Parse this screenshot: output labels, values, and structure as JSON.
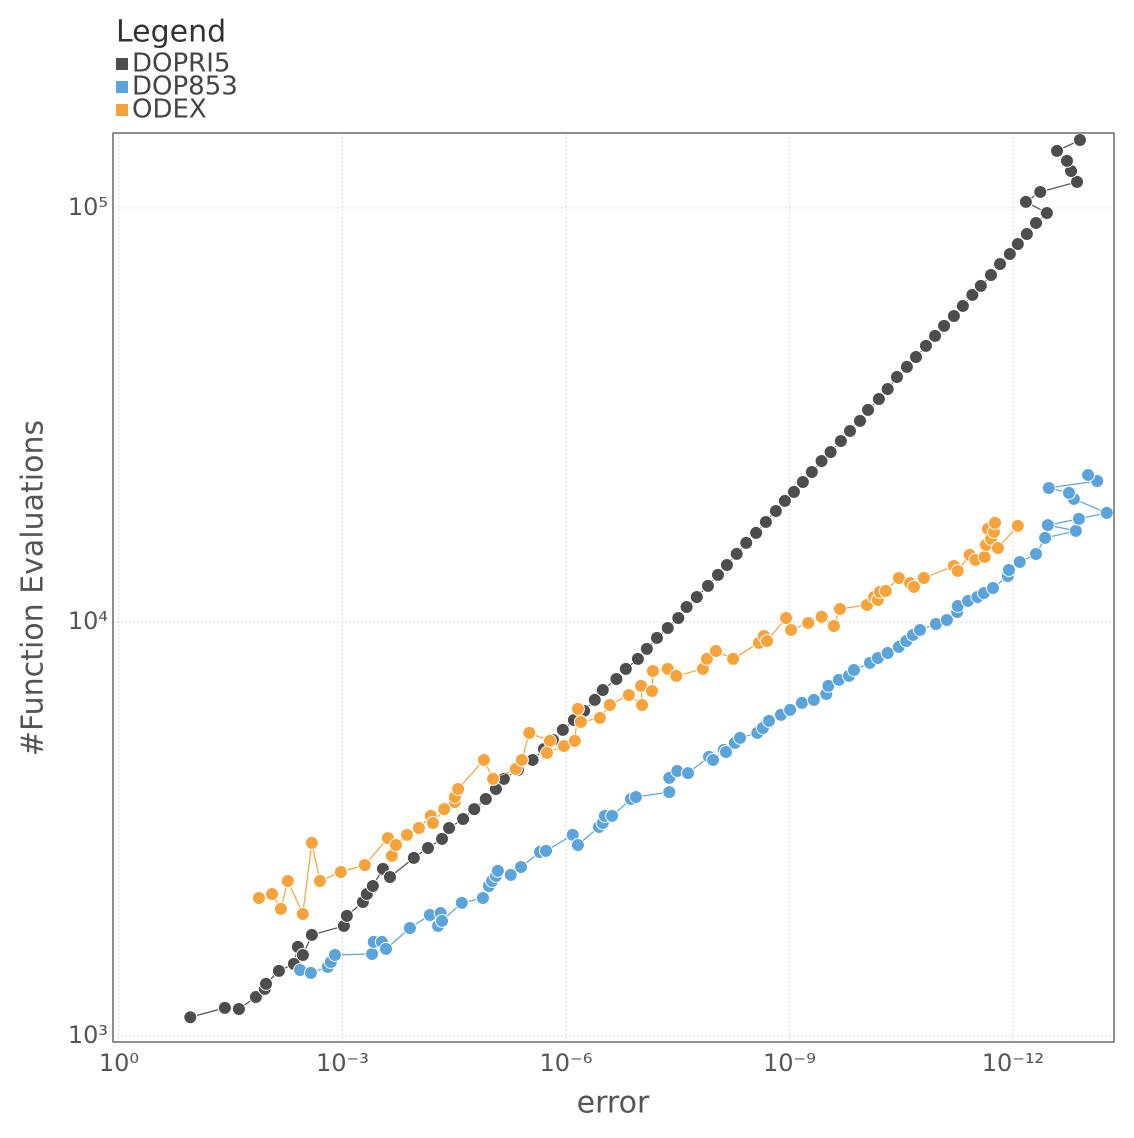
{
  "chart_data": {
    "type": "line",
    "x_label": "error",
    "y_label": "#Function Evaluations",
    "legend_title": "Legend",
    "legend": "top-left",
    "x_scale": "log",
    "y_scale": "log",
    "grid": true,
    "xlim": [
      1.2,
      4.4e-14
    ],
    "ylim": [
      967,
      151700
    ],
    "xticks": [
      {
        "value": 1,
        "label": "10⁰"
      },
      {
        "value": 0.001,
        "label": "10⁻³"
      },
      {
        "value": 1e-06,
        "label": "10⁻⁶"
      },
      {
        "value": 1e-09,
        "label": "10⁻⁹"
      },
      {
        "value": 1e-12,
        "label": "10⁻¹²"
      }
    ],
    "yticks": [
      {
        "value": 1000,
        "label": "10³"
      },
      {
        "value": 10000,
        "label": "10⁴"
      },
      {
        "value": 100000,
        "label": "10⁵"
      }
    ],
    "series": [
      {
        "name": "DOPRI5",
        "color": "#4d4d4d",
        "x": [
          0.11,
          0.0378,
          0.0245,
          0.0145,
          0.011,
          0.0106,
          0.00711,
          0.00448,
          0.00396,
          0.00339,
          0.00257,
          0.000955,
          0.000871,
          0.000531,
          0.000469,
          0.00039,
          0.000286,
          0.00023,
          0.00011,
          7.1e-05,
          4.6e-05,
          3.7e-05,
          2.4e-05,
          1.7e-05,
          1.19e-05,
          8.7e-06,
          6.8e-06,
          4.4e-06,
          2.8e-06,
          1.97e-06,
          1.49e-06,
          1.1e-06,
          7.8e-07,
          5.7e-07,
          4.1e-07,
          3.2e-07,
          2.1e-07,
          1.57e-07,
          1.08e-07,
          8.2e-08,
          6e-08,
          4.3e-08,
          3.1e-08,
          2.4e-08,
          1.75e-08,
          1.24e-08,
          9.1e-09,
          6.9e-09,
          5.1e-09,
          3.8e-09,
          2.8e-09,
          2.07e-09,
          1.52e-09,
          1.15e-09,
          8.7e-10,
          6.6e-10,
          5e-10,
          3.7e-10,
          2.8e-10,
          2.04e-10,
          1.54e-10,
          1.13e-10,
          8.8e-11,
          6.3e-11,
          4.8e-11,
          3.6e-11,
          2.65e-11,
          2e-11,
          1.47e-11,
          1.11e-11,
          8.4e-12,
          6.2e-12,
          4.7e-12,
          3.5e-12,
          2.7e-12,
          1.97e-12,
          1.49e-12,
          1.1e-12,
          8.6e-13,
          6.5e-13,
          4.9e-13,
          3.5e-13,
          6.7e-13,
          4.3e-13,
          1.38e-13,
          1.66e-13,
          1.88e-13,
          2.56e-13,
          1.26e-13
        ],
        "values": [
          1110,
          1169,
          1162,
          1242,
          1299,
          1336,
          1436,
          1493,
          1641,
          1569,
          1754,
          1844,
          1950,
          2107,
          2203,
          2303,
          2532,
          2421,
          2692,
          2845,
          2993,
          3179,
          3342,
          3532,
          3736,
          3950,
          4178,
          4391,
          4642,
          4932,
          5188,
          5485,
          5797,
          6097,
          6481,
          6850,
          7283,
          7701,
          8141,
          8607,
          9150,
          9672,
          10224,
          10870,
          11490,
          12220,
          12990,
          13730,
          14600,
          15520,
          16410,
          17440,
          18540,
          19610,
          20610,
          21780,
          23030,
          24480,
          25730,
          27360,
          28930,
          30590,
          32520,
          34560,
          36540,
          39060,
          41300,
          43650,
          46420,
          49090,
          51880,
          54830,
          57980,
          61650,
          64810,
          68880,
          73220,
          77400,
          81840,
          86510,
          91990,
          97210,
          103400,
          109300,
          115600,
          122800,
          129900,
          137300,
          145900
        ]
      },
      {
        "name": "DOP853",
        "color": "#5ba3db",
        "x": [
          0.0037,
          0.00265,
          0.00157,
          0.00143,
          0.00126,
          0.0004,
          0.00038,
          0.000295,
          0.00026,
          0.000124,
          6.7e-05,
          4.8e-05,
          5.2e-05,
          4.6e-05,
          2.5e-05,
          1.3e-05,
          1.08e-05,
          9.8e-06,
          8.7e-06,
          8.2e-06,
          5.5e-06,
          4e-06,
          2.23e-06,
          1.85e-06,
          8.1e-07,
          6.9e-07,
          3.6e-07,
          3.2e-07,
          3e-07,
          2.4e-07,
          1.34e-07,
          1.15e-07,
          4.1e-08,
          4.1e-08,
          3.2e-08,
          2.3e-08,
          1.2e-08,
          1.06e-08,
          7.6e-09,
          7.1e-09,
          5.4e-09,
          4.6e-09,
          2.7e-09,
          2.27e-09,
          1.88e-09,
          1.3e-09,
          9.8e-10,
          6.8e-10,
          4.7e-10,
          3.2e-10,
          3e-10,
          2.17e-10,
          1.59e-10,
          1.36e-10,
          8.3e-11,
          6.5e-11,
          4.8e-11,
          3.4e-11,
          2.7e-11,
          2.2e-11,
          1.77e-11,
          1.08e-11,
          7.7e-12,
          5.6e-12,
          5.5e-12,
          4e-12,
          3e-12,
          2.45e-12,
          1.85e-12,
          1.17e-12,
          1.13e-12,
          8.1e-13,
          4.9e-13,
          3.7e-13,
          1.43e-13,
          3.4e-13,
          1.3e-13,
          5.5e-14,
          1.52e-13,
          1.77e-13,
          3.3e-13,
          7.4e-14,
          9.8e-14
        ],
        "values": [
          1443,
          1420,
          1468,
          1509,
          1569,
          1578,
          1687,
          1687,
          1623,
          1823,
          1960,
          1982,
          1844,
          1896,
          2096,
          2154,
          2303,
          2368,
          2435,
          2504,
          2449,
          2560,
          2782,
          2799,
          3059,
          2892,
          3198,
          3269,
          3400,
          3400,
          3736,
          3778,
          3882,
          4200,
          4365,
          4315,
          4721,
          4642,
          4909,
          4853,
          5104,
          5248,
          5395,
          5546,
          5768,
          5963,
          6131,
          6374,
          6481,
          6700,
          7006,
          7244,
          7407,
          7656,
          7962,
          8185,
          8414,
          8705,
          8995,
          9303,
          9565,
          9886,
          10110,
          10570,
          10930,
          11240,
          11490,
          11750,
          12080,
          12910,
          13350,
          13960,
          14590,
          15960,
          16590,
          17140,
          17740,
          18340,
          19820,
          20500,
          21070,
          21900,
          22650
        ]
      },
      {
        "name": "ODEX",
        "color": "#f5a33a",
        "x": [
          0.0132,
          0.0088,
          0.0067,
          0.0054,
          0.0034,
          0.00257,
          0.002,
          0.00105,
          0.0005,
          0.000245,
          0.000217,
          0.000191,
          0.000136,
          9.4e-05,
          6.5e-05,
          6.1e-05,
          4.3e-05,
          3.1e-05,
          3.1e-05,
          2.8e-05,
          1.26e-05,
          9.5e-06,
          4.7e-06,
          3.9e-06,
          3.1e-06,
          1.64e-06,
          1.8e-06,
          1.06e-06,
          7.6e-07,
          6.9e-07,
          6.3e-07,
          3.5e-07,
          2.57e-07,
          1.43e-07,
          9.5e-08,
          9.8e-08,
          7e-08,
          6.8e-08,
          4.3e-08,
          3.3e-08,
          1.45e-08,
          1.28e-08,
          9.7e-09,
          5.7e-09,
          2.57e-09,
          2.2e-09,
          2e-09,
          1.11e-09,
          9.5e-10,
          5.6e-10,
          3.7e-10,
          2.53e-10,
          2.1e-10,
          9.1e-11,
          7.3e-11,
          6.5e-11,
          6.1e-11,
          5.1e-11,
          3.4e-11,
          2.4e-11,
          2.13e-11,
          1.57e-11,
          6.2e-12,
          5.5e-12,
          3.8e-12,
          3.2e-12,
          2.4e-12,
          2.3e-12,
          2.17e-12,
          1.97e-12,
          1.8e-12,
          1.74e-12,
          1.59e-12,
          8.6e-13
        ],
        "values": [
          2154,
          2203,
          2027,
          2368,
          1971,
          2926,
          2368,
          2489,
          2588,
          3006,
          2722,
          2892,
          3059,
          3179,
          3400,
          3269,
          3532,
          3673,
          3778,
          3950,
          4642,
          4178,
          4416,
          4642,
          5395,
          5160,
          4827,
          5017,
          5160,
          6166,
          5735,
          5866,
          6302,
          6663,
          6302,
          7006,
          6813,
          7613,
          7701,
          7407,
          7701,
          8141,
          8511,
          8141,
          8899,
          9247,
          8995,
          10220,
          9565,
          9945,
          10290,
          9779,
          10750,
          10990,
          11490,
          11300,
          11820,
          11880,
          12770,
          12410,
          12150,
          12770,
          13650,
          13280,
          14520,
          14120,
          14350,
          15350,
          16770,
          15870,
          16500,
          17350,
          15090,
          17060
        ]
      }
    ]
  }
}
